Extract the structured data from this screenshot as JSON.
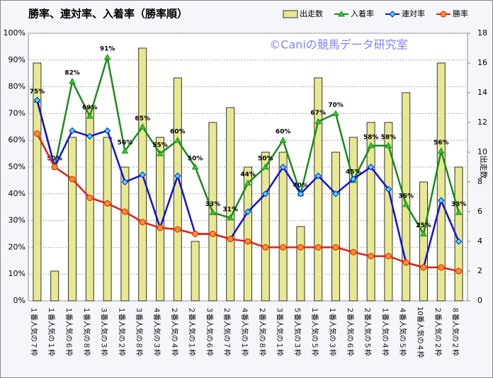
{
  "chart_data": {
    "type": "bar-line",
    "title": "勝率、連対率、入着率（勝率順）",
    "watermark": "©Caniの競馬データ研究室",
    "y2_label": "出走数",
    "categories": [
      "１番人気の７枠",
      "１番人気の１枠",
      "１番人気の６枠",
      "１番人気の８枠",
      "３番人気の３枠",
      "１番人気の２枠",
      "３番人気の８枠",
      "４番人気の３枠",
      "２番人気の４枠",
      "２番人気の１枠",
      "３番人気の６枠",
      "２番人気の７枠",
      "４番人気の１枠",
      "２番人気の８枠",
      "３番人気の１枠",
      "５番人気の３枠",
      "１番人気の５枠",
      "１番人気の３枠",
      "２番人気の６枠",
      "２番人気の５枠",
      "１番人気の４枠",
      "４番人気の５枠",
      "10番人気の４枠",
      "２番人気の２枠",
      "８番人気の２枠"
    ],
    "ylim": [
      0,
      100
    ],
    "yticks": [
      {
        "value": 0,
        "label": "0%"
      },
      {
        "value": 10,
        "label": "10%"
      },
      {
        "value": 20,
        "label": "20%"
      },
      {
        "value": 30,
        "label": "30%"
      },
      {
        "value": 40,
        "label": "40%"
      },
      {
        "value": 50,
        "label": "50%"
      },
      {
        "value": 60,
        "label": "60%"
      },
      {
        "value": 70,
        "label": "70%"
      },
      {
        "value": 80,
        "label": "80%"
      },
      {
        "value": 90,
        "label": "90%"
      },
      {
        "value": 100,
        "label": "100%"
      }
    ],
    "y2lim": [
      0,
      18
    ],
    "y2ticks": [
      0,
      2,
      4,
      6,
      8,
      10,
      12,
      14,
      16,
      18
    ],
    "grid": true,
    "series": [
      {
        "name": "出走数",
        "type": "bar",
        "axis": "y2",
        "color": "#e8e890",
        "values": [
          16,
          2,
          11,
          13,
          11,
          9,
          17,
          11,
          15,
          4,
          12,
          13,
          9,
          10,
          10,
          5,
          15,
          10,
          11,
          12,
          12,
          14,
          8,
          16,
          9
        ]
      },
      {
        "name": "入着率",
        "type": "line",
        "color": "#1a8c1a",
        "values": [
          75,
          50,
          82,
          69,
          91,
          56,
          65,
          55,
          60,
          50,
          33,
          31,
          44,
          50,
          60,
          40,
          67,
          70,
          45,
          58,
          58,
          36,
          25,
          56,
          33
        ],
        "value_labels": [
          "75%",
          "50%",
          "82%",
          "69%",
          "91%",
          "56%",
          "65%",
          "55%",
          "60%",
          "50%",
          "33%",
          "31%",
          "44%",
          "50%",
          "60%",
          "40%",
          "67%",
          "70%",
          "45%",
          "58%",
          "58%",
          "36%",
          "25%",
          "56%",
          "33%"
        ]
      },
      {
        "name": "連対率",
        "type": "line",
        "color": "#1010e0",
        "values": [
          75,
          50,
          63.6,
          61.5,
          63.6,
          44.4,
          47.1,
          27.3,
          46.7,
          25,
          25,
          23.1,
          33.3,
          40,
          50,
          40,
          46.7,
          40,
          45.5,
          50,
          41.7,
          14.3,
          12.5,
          37.5,
          22.2
        ]
      },
      {
        "name": "勝率",
        "type": "line",
        "color": "#e02010",
        "values": [
          62.5,
          50,
          45.5,
          38.5,
          36.4,
          33.3,
          29.4,
          27.3,
          26.7,
          25,
          25,
          23.1,
          22.2,
          20,
          20,
          20,
          20,
          20,
          18.2,
          16.7,
          16.7,
          14.3,
          12.5,
          12.5,
          11.1
        ]
      }
    ]
  }
}
